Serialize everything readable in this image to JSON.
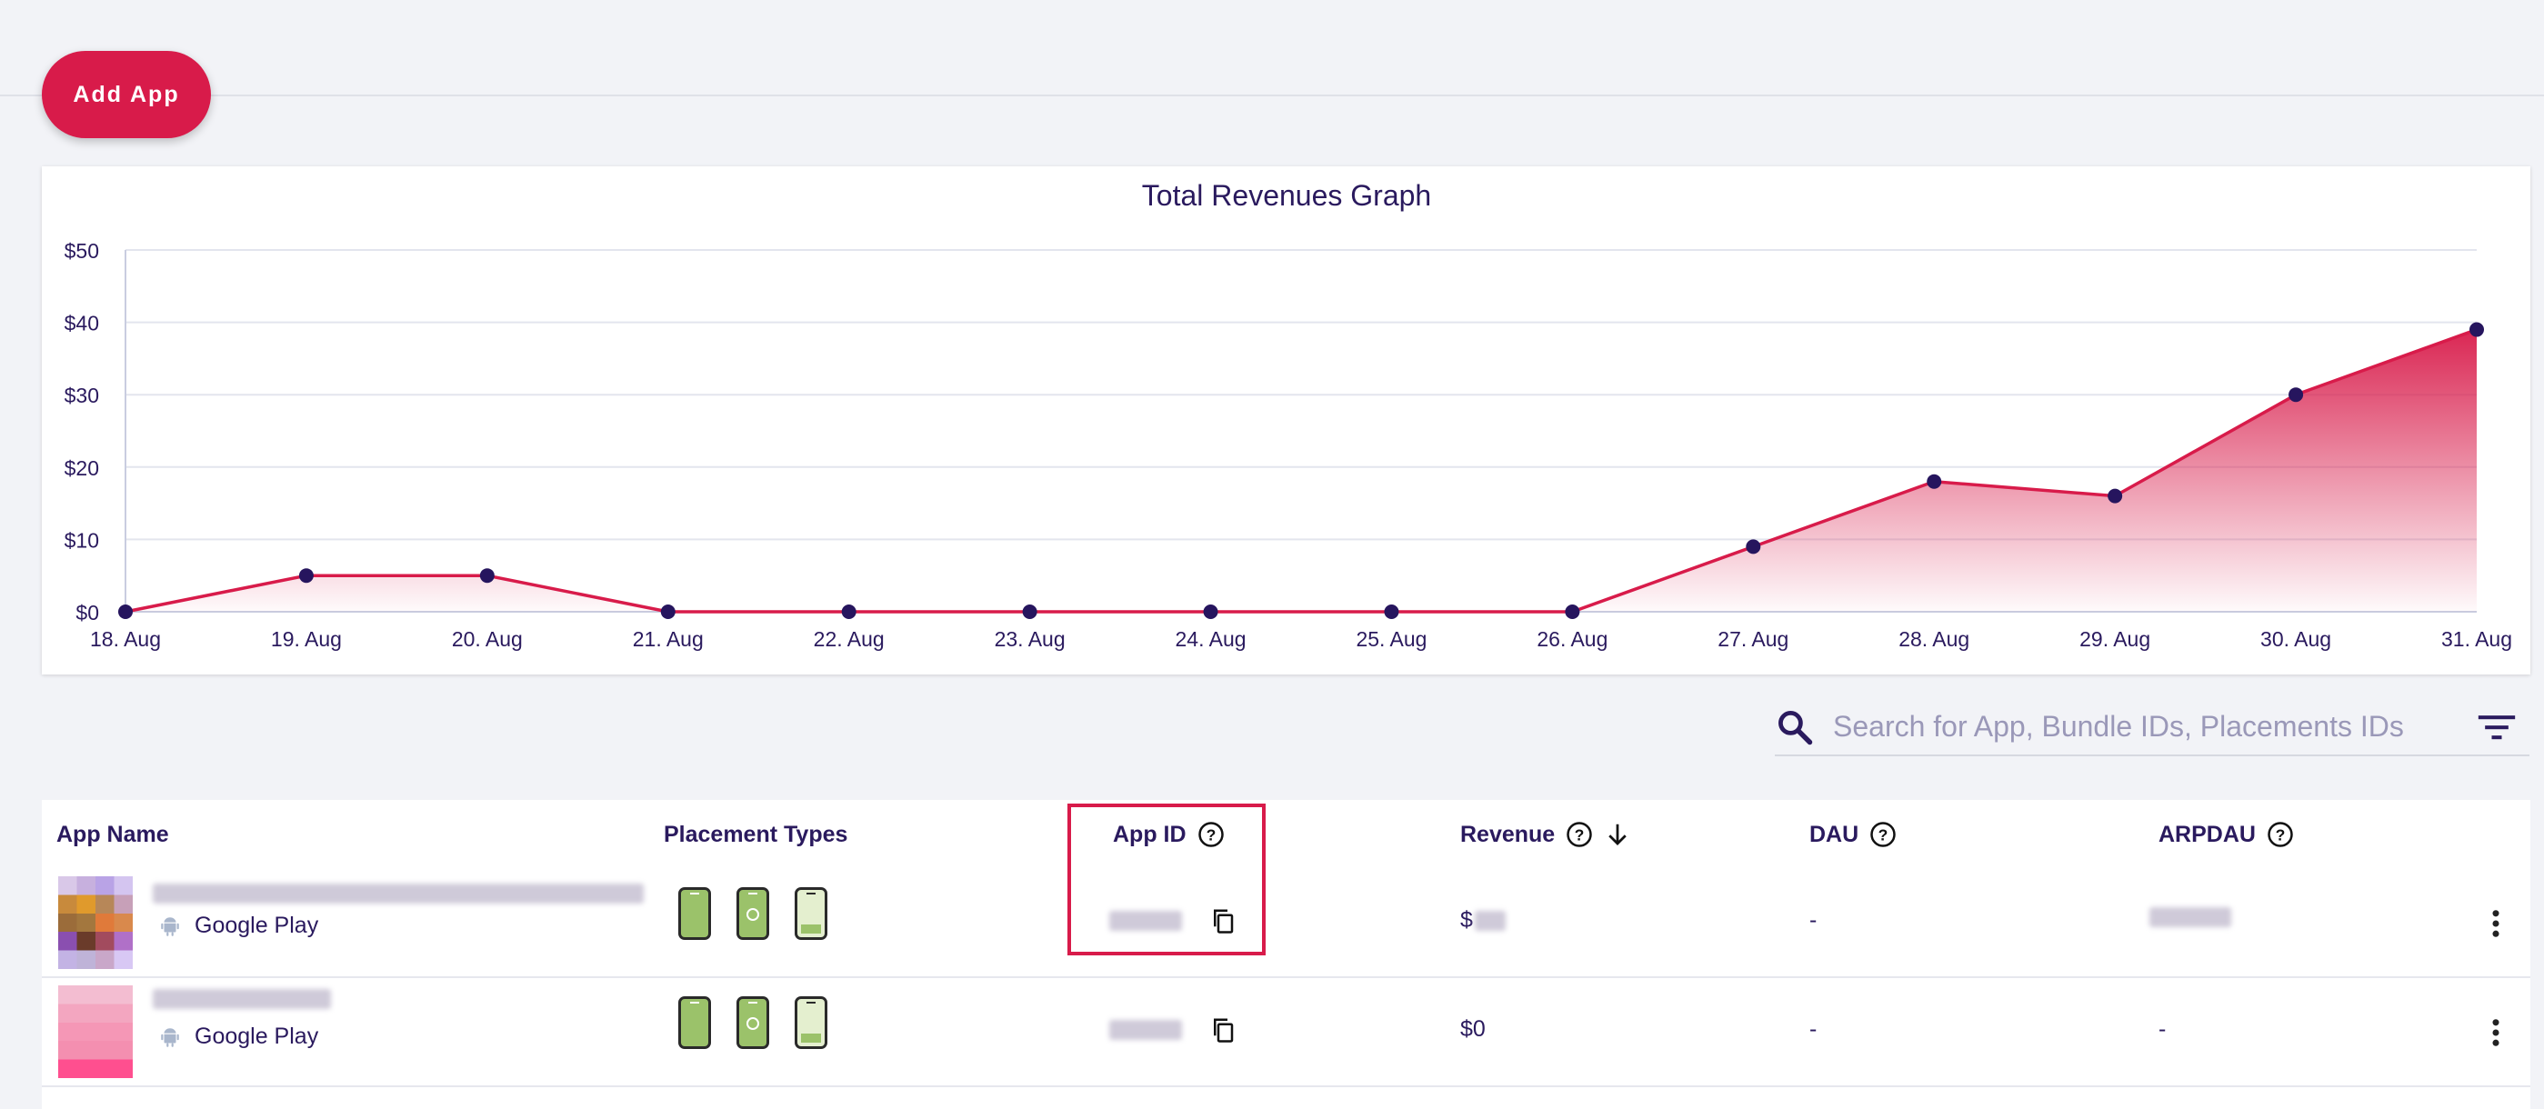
{
  "toolbar": {
    "add_app_label": "Add App"
  },
  "chart_data": {
    "type": "area",
    "title": "Total Revenues Graph",
    "x": [
      "18. Aug",
      "19. Aug",
      "20. Aug",
      "21. Aug",
      "22. Aug",
      "23. Aug",
      "24. Aug",
      "25. Aug",
      "26. Aug",
      "27. Aug",
      "28. Aug",
      "29. Aug",
      "30. Aug",
      "31. Aug"
    ],
    "values": [
      0,
      5,
      5,
      0,
      0,
      0,
      0,
      0,
      0,
      9,
      18,
      16,
      30,
      39
    ],
    "yticks": [
      "$0",
      "$10",
      "$20",
      "$30",
      "$40",
      "$50"
    ],
    "ylim": [
      0,
      50
    ],
    "grid": true,
    "colors": {
      "line": "#d81b4a",
      "point": "#26155e",
      "fill": "#d81b4a"
    }
  },
  "search": {
    "placeholder": "Search for App, Bundle IDs, Placements IDs"
  },
  "table": {
    "headers": {
      "app_name": "App Name",
      "placement_types": "Placement Types",
      "app_id": "App ID",
      "revenue": "Revenue",
      "dau": "DAU",
      "arpdau": "ARPDAU"
    },
    "rows": [
      {
        "store": "Google Play",
        "revenue": "$",
        "dau": "-",
        "arpdau": ""
      },
      {
        "store": "Google Play",
        "revenue": "$0",
        "dau": "-",
        "arpdau": "-"
      }
    ]
  },
  "colors": {
    "accent": "#d81b4a",
    "text": "#2a1a5e",
    "placement_green": "#9bc26a"
  }
}
